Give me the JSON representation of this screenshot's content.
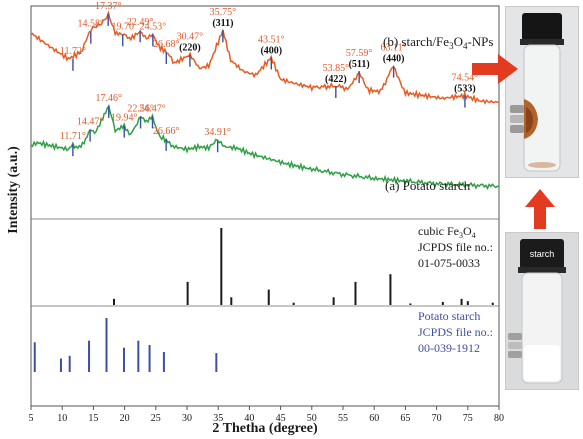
{
  "chart_data": {
    "type": "line",
    "xlabel": "2 Thetha (degree)",
    "ylabel": "Intensity (a.u.)",
    "xlim": [
      5,
      80
    ],
    "x_ticks": [
      "5",
      "10",
      "15",
      "20",
      "25",
      "30",
      "35",
      "40",
      "45",
      "50",
      "55",
      "60",
      "65",
      "70",
      "75",
      "80"
    ],
    "grid": false,
    "series": [
      {
        "name": "(b) starch/Fe3O4-NPs",
        "color": "#ea5a20",
        "x": [
          5,
          8,
          11,
          13,
          14.6,
          16,
          17.4,
          18.5,
          19.7,
          21,
          22.5,
          23.5,
          24.5,
          25.5,
          26.7,
          28,
          30.5,
          32,
          33.5,
          35.75,
          37,
          39,
          41,
          43.5,
          45,
          48,
          50,
          53.9,
          56,
          57.6,
          59,
          61,
          63.1,
          65,
          68,
          71,
          74.5,
          77,
          80
        ],
        "y": [
          0.86,
          0.76,
          0.67,
          0.72,
          0.88,
          0.92,
          1.0,
          0.86,
          0.85,
          0.82,
          0.87,
          0.82,
          0.85,
          0.76,
          0.72,
          0.64,
          0.7,
          0.6,
          0.62,
          0.88,
          0.66,
          0.58,
          0.55,
          0.68,
          0.52,
          0.48,
          0.46,
          0.47,
          0.45,
          0.58,
          0.44,
          0.43,
          0.62,
          0.42,
          0.4,
          0.38,
          0.4,
          0.36,
          0.35
        ],
        "peak_labels": [
          {
            "x": 11.72,
            "text": "11.72°",
            "y": 0.7
          },
          {
            "x": 14.58,
            "text": "14.58°",
            "y": 0.9
          },
          {
            "x": 17.37,
            "text": "17.37°",
            "y": 1.03
          },
          {
            "x": 19.7,
            "text": "19.70",
            "y": 0.88
          },
          {
            "x": 22.49,
            "text": "22.49°",
            "y": 0.91
          },
          {
            "x": 24.53,
            "text": "24.53°",
            "y": 0.88
          },
          {
            "x": 26.68,
            "text": "26.68°",
            "y": 0.75
          },
          {
            "x": 30.47,
            "text": "30.47°",
            "hkl": "(220)",
            "y": 0.73
          },
          {
            "x": 35.75,
            "text": "35.75°",
            "hkl": "(311)",
            "y": 0.91
          },
          {
            "x": 43.51,
            "text": "43.51°",
            "hkl": "(400)",
            "y": 0.71
          },
          {
            "x": 53.85,
            "text": "53.85°",
            "hkl": "(422)",
            "y": 0.5
          },
          {
            "x": 57.59,
            "text": "57.59°",
            "hkl": "(511)",
            "y": 0.61
          },
          {
            "x": 63.11,
            "text": "63.11°",
            "hkl": "(440)",
            "y": 0.65
          },
          {
            "x": 74.54,
            "text": "74.54°",
            "hkl": "(533)",
            "y": 0.43
          }
        ]
      },
      {
        "name": "(a) Potato starch",
        "color": "#2ea043",
        "x": [
          5,
          6,
          7,
          8,
          9,
          10,
          11,
          11.71,
          12.5,
          13.5,
          14.47,
          15.2,
          16,
          17.46,
          18.5,
          19.94,
          21,
          22.56,
          23.5,
          24.47,
          25.5,
          26.66,
          28,
          30,
          32,
          33.5,
          34.91,
          36,
          38,
          40,
          43,
          46,
          50,
          55,
          60,
          65,
          70,
          75,
          80
        ],
        "y": [
          0.58,
          0.6,
          0.59,
          0.58,
          0.57,
          0.56,
          0.55,
          0.59,
          0.56,
          0.6,
          0.7,
          0.68,
          0.74,
          0.88,
          0.69,
          0.73,
          0.66,
          0.8,
          0.76,
          0.8,
          0.65,
          0.62,
          0.57,
          0.55,
          0.57,
          0.56,
          0.62,
          0.57,
          0.56,
          0.52,
          0.48,
          0.44,
          0.4,
          0.36,
          0.33,
          0.31,
          0.29,
          0.28,
          0.27
        ],
        "peak_labels": [
          {
            "x": 11.71,
            "text": "11.71°",
            "y": 0.62
          },
          {
            "x": 14.47,
            "text": "14.47°",
            "y": 0.73
          },
          {
            "x": 17.46,
            "text": "17.46°",
            "y": 0.91
          },
          {
            "x": 19.94,
            "text": "19.94°",
            "y": 0.76
          },
          {
            "x": 22.56,
            "text": "22.56°",
            "y": 0.83
          },
          {
            "x": 24.47,
            "text": "24.47°",
            "y": 0.83
          },
          {
            "x": 26.66,
            "text": "26.66°",
            "y": 0.66
          },
          {
            "x": 34.91,
            "text": "34.91°",
            "y": 0.65
          }
        ]
      }
    ],
    "reference_patterns": [
      {
        "name": "cubic Fe3O4",
        "lines": [
          "cubic Fe3O4",
          "JCPDS file no.:",
          "01-075-0033"
        ],
        "color": "#1a1a1a",
        "x": [
          18.3,
          30.1,
          35.5,
          37.1,
          43.1,
          47.1,
          53.5,
          57.0,
          62.6,
          65.8,
          71.0,
          74.0,
          75.0,
          79.0
        ],
        "y": [
          8,
          30,
          100,
          10,
          20,
          3,
          10,
          30,
          40,
          2,
          4,
          8,
          5,
          3
        ]
      },
      {
        "name": "Potato starch",
        "lines": [
          "Potato starch",
          "JCPDS file no.:",
          "00-039-1912"
        ],
        "color": "#3d4fa0",
        "x": [
          5.6,
          9.8,
          11.2,
          14.3,
          17.1,
          19.9,
          22.2,
          24.0,
          26.3,
          34.7
        ],
        "y": [
          55,
          25,
          30,
          58,
          100,
          45,
          58,
          50,
          37,
          35
        ]
      }
    ],
    "panel_labels": [
      "(b) starch/Fe3O4-NPs",
      "(a) Potato starch"
    ]
  },
  "photos": {
    "top_label": "",
    "bottom_label": "starch"
  },
  "colors": {
    "orange": "#ea5a20",
    "green": "#2ea043",
    "black": "#1a1a1a",
    "blue": "#3d4fa0",
    "arrow_red": "#e33b1f",
    "label_red": "#e05a2c"
  }
}
